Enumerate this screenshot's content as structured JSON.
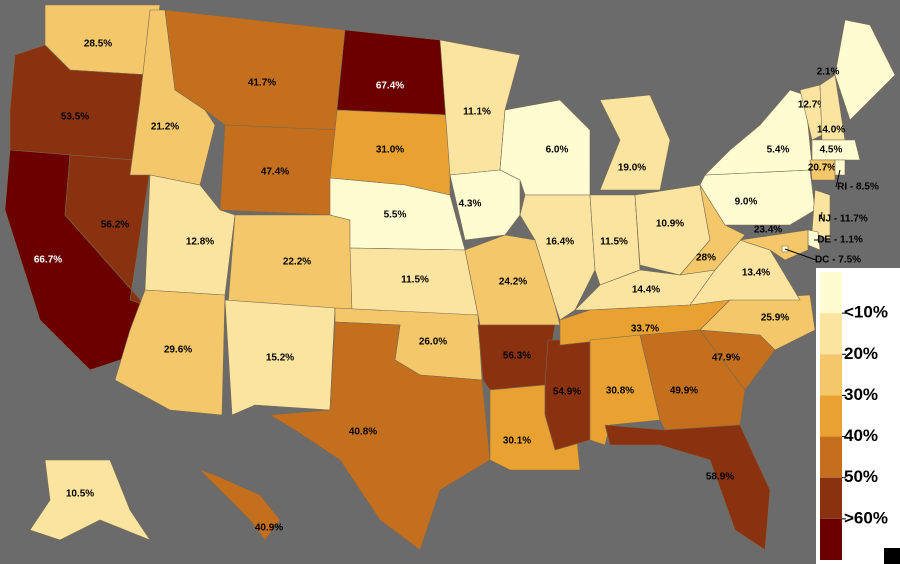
{
  "map": {
    "states": [
      {
        "value": 28.5,
        "label": "28.5%"
      },
      {
        "value": 53.5,
        "label": "53.5%"
      },
      {
        "value": 66.7,
        "label": "66.7%"
      },
      {
        "value": 56.2,
        "label": "56.2%"
      },
      {
        "value": 21.2,
        "label": "21.2%"
      },
      {
        "value": 41.7,
        "label": "41.7%"
      },
      {
        "value": 47.4,
        "label": "47.4%"
      },
      {
        "value": 12.8,
        "label": "12.8%"
      },
      {
        "value": 22.2,
        "label": "22.2%"
      },
      {
        "value": 29.6,
        "label": "29.6%"
      },
      {
        "value": 15.2,
        "label": "15.2%"
      },
      {
        "value": 67.4,
        "label": "67.4%"
      },
      {
        "value": 31.0,
        "label": "31.0%"
      },
      {
        "value": 5.5,
        "label": "5.5%"
      },
      {
        "value": 11.5,
        "label": "11.5%"
      },
      {
        "value": 26.0,
        "label": "26.0%"
      },
      {
        "value": 40.8,
        "label": "40.8%"
      },
      {
        "value": 11.1,
        "label": "11.1%"
      },
      {
        "value": 4.3,
        "label": "4.3%"
      },
      {
        "value": 24.2,
        "label": "24.2%"
      },
      {
        "value": 56.3,
        "label": "56.3%"
      },
      {
        "value": 30.1,
        "label": "30.1%"
      },
      {
        "value": 54.9,
        "label": "54.9%"
      },
      {
        "value": 6.0,
        "label": "6.0%"
      },
      {
        "value": 16.4,
        "label": "16.4%"
      },
      {
        "value": 19.0,
        "label": "19.0%"
      },
      {
        "value": 11.5,
        "label": "11.5%"
      },
      {
        "value": 10.9,
        "label": "10.9%"
      },
      {
        "value": 14.4,
        "label": "14.4%"
      },
      {
        "value": 33.7,
        "label": "33.7%"
      },
      {
        "value": 30.8,
        "label": "30.8%"
      },
      {
        "value": 49.9,
        "label": "49.9%"
      },
      {
        "value": 58.9,
        "label": "58.9%"
      },
      {
        "value": 47.9,
        "label": "47.9%"
      },
      {
        "value": 25.9,
        "label": "25.9%"
      },
      {
        "value": 13.4,
        "label": "13.4%"
      },
      {
        "value": 28,
        "label": "28%"
      },
      {
        "value": 9.0,
        "label": "9.0%"
      },
      {
        "value": 5.4,
        "label": "5.4%"
      },
      {
        "value": 12.7,
        "label": "12.7%"
      },
      {
        "value": 14.0,
        "label": "14.0%"
      },
      {
        "value": 2.1,
        "label": "2.1%"
      },
      {
        "value": 4.5,
        "label": "4.5%"
      },
      {
        "value": 20.7,
        "label": "20.7%"
      },
      {
        "value": 8.5,
        "label": "RI - 8.5%"
      },
      {
        "value": 11.7,
        "label": "NJ - 11.7%"
      },
      {
        "value": 1.1,
        "label": "DE - 1.1%"
      },
      {
        "value": 23.4,
        "label": "23.4%"
      },
      {
        "value": 7.5,
        "label": "DC - 7.5%"
      },
      {
        "value": 10.5,
        "label": "10.5%"
      },
      {
        "value": 40.9,
        "label": "40.9%"
      }
    ],
    "legend": {
      "colors": [
        "#fffcd2",
        "#fbe49f",
        "#f4c76a",
        "#e9a232",
        "#c46f1e",
        "#8a3210",
        "#6a0000"
      ],
      "ticks": [
        {
          "value": 10,
          "label": "<10%"
        },
        {
          "value": 20,
          "label": "20%"
        },
        {
          "value": 30,
          "label": "30%"
        },
        {
          "value": 40,
          "label": "40%"
        },
        {
          "value": 50,
          "label": "50%"
        },
        {
          "value": 60,
          "label": ">60%"
        }
      ]
    }
  }
}
